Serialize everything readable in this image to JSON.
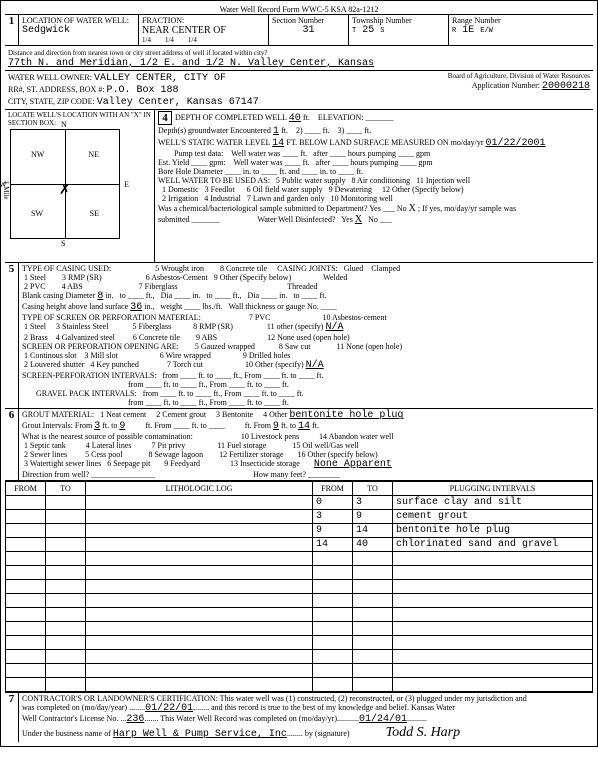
{
  "form_title": "Water Well Record   Form WWC-5   KSA 82a-1212",
  "sec1": {
    "county": "Sedgwick",
    "fraction": "NEAR CENTER OF",
    "section": "31",
    "township": "25",
    "range": "1E",
    "distance": "77th N. and Meridian, 1/2 E. and 1/2 N.        Valley Center, Kansas",
    "owner": "VALLEY CENTER, CITY OF",
    "addr": "P.O. Box 188",
    "city": "Valley Center, Kansas        67147",
    "app_num": "20000218"
  },
  "sec4": {
    "depth": "40",
    "depths_enc": "1",
    "static": "14",
    "date": "01/22/2001",
    "disinfected_yes": "X"
  },
  "sec5": {
    "blank_dia": "8",
    "casing_height": "36",
    "other_spec": "N/A",
    "perf_other": "N/A"
  },
  "sec6": {
    "grout_other": "bentonite hole plug",
    "from": "3",
    "to": "9",
    "from2": "9",
    "to2": "14",
    "contam": "None Apparent"
  },
  "log": [
    {
      "f": "0",
      "t": "3",
      "d": "surface clay and silt"
    },
    {
      "f": "3",
      "t": "9",
      "d": "cement grout"
    },
    {
      "f": "9",
      "t": "14",
      "d": "bentonite hole plug"
    },
    {
      "f": "14",
      "t": "40",
      "d": "chlorinated sand and gravel"
    }
  ],
  "sec7": {
    "date1": "01/22/01",
    "lic": "236",
    "date2": "01/24/01",
    "biz": "Harp Well & Pump Service, Inc",
    "sig": "Todd S. Harp"
  }
}
